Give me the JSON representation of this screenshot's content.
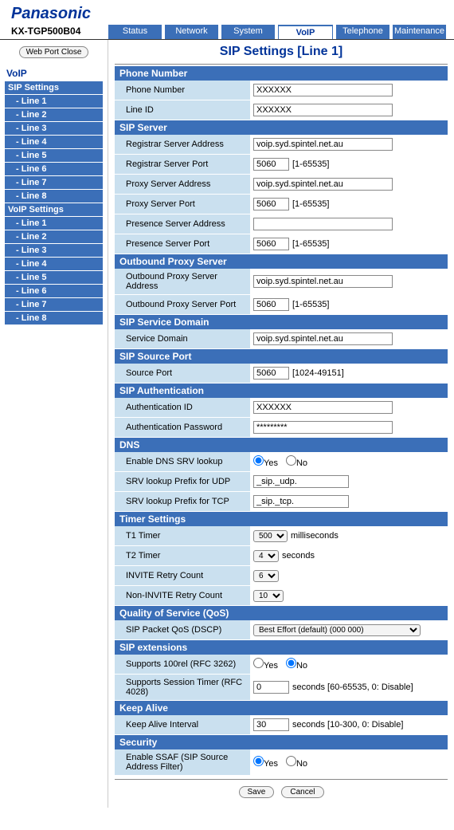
{
  "brand": "Panasonic",
  "model": "KX-TGP500B04",
  "tabs": [
    "Status",
    "Network",
    "System",
    "VoIP",
    "Telephone",
    "Maintenance"
  ],
  "active_tab": "VoIP",
  "sidebar": {
    "webport": "Web Port Close",
    "title": "VoIP",
    "groups": [
      {
        "head": "SIP Settings",
        "items": [
          "- Line 1",
          "- Line 2",
          "- Line 3",
          "- Line 4",
          "- Line 5",
          "- Line 6",
          "- Line 7",
          "- Line 8"
        ]
      },
      {
        "head": "VoIP Settings",
        "items": [
          "- Line 1",
          "- Line 2",
          "- Line 3",
          "- Line 4",
          "- Line 5",
          "- Line 6",
          "- Line 7",
          "- Line 8"
        ]
      }
    ]
  },
  "page_title": "SIP Settings [Line 1]",
  "sections": {
    "phone_number": {
      "title": "Phone Number",
      "phone_number": {
        "label": "Phone Number",
        "value": "XXXXXX"
      },
      "line_id": {
        "label": "Line ID",
        "value": "XXXXXX"
      }
    },
    "sip_server": {
      "title": "SIP Server",
      "registrar_addr": {
        "label": "Registrar Server Address",
        "value": "voip.syd.spintel.net.au"
      },
      "registrar_port": {
        "label": "Registrar Server Port",
        "value": "5060",
        "hint": "[1-65535]"
      },
      "proxy_addr": {
        "label": "Proxy Server Address",
        "value": "voip.syd.spintel.net.au"
      },
      "proxy_port": {
        "label": "Proxy Server Port",
        "value": "5060",
        "hint": "[1-65535]"
      },
      "presence_addr": {
        "label": "Presence Server Address",
        "value": ""
      },
      "presence_port": {
        "label": "Presence Server Port",
        "value": "5060",
        "hint": "[1-65535]"
      }
    },
    "outbound": {
      "title": "Outbound Proxy Server",
      "addr": {
        "label": "Outbound Proxy Server Address",
        "value": "voip.syd.spintel.net.au"
      },
      "port": {
        "label": "Outbound Proxy Server Port",
        "value": "5060",
        "hint": "[1-65535]"
      }
    },
    "svc_domain": {
      "title": "SIP Service Domain",
      "domain": {
        "label": "Service Domain",
        "value": "voip.syd.spintel.net.au"
      }
    },
    "src_port": {
      "title": "SIP Source Port",
      "port": {
        "label": "Source Port",
        "value": "5060",
        "hint": "[1024-49151]"
      }
    },
    "auth": {
      "title": "SIP Authentication",
      "id": {
        "label": "Authentication ID",
        "value": "XXXXXX"
      },
      "pwd": {
        "label": "Authentication Password",
        "value": "*********"
      }
    },
    "dns": {
      "title": "DNS",
      "enable": {
        "label": "Enable DNS SRV lookup",
        "yes": "Yes",
        "no": "No",
        "value": "yes"
      },
      "udp": {
        "label": "SRV lookup Prefix for UDP",
        "value": "_sip._udp."
      },
      "tcp": {
        "label": "SRV lookup Prefix for TCP",
        "value": "_sip._tcp."
      }
    },
    "timer": {
      "title": "Timer Settings",
      "t1": {
        "label": "T1 Timer",
        "value": "500",
        "unit": "milliseconds"
      },
      "t2": {
        "label": "T2 Timer",
        "value": "4",
        "unit": "seconds"
      },
      "invite": {
        "label": "INVITE Retry Count",
        "value": "6"
      },
      "noninvite": {
        "label": "Non-INVITE Retry Count",
        "value": "10"
      }
    },
    "qos": {
      "title": "Quality of Service (QoS)",
      "dscp": {
        "label": "SIP Packet QoS (DSCP)",
        "value": "Best Effort (default) (000 000)"
      }
    },
    "sipext": {
      "title": "SIP extensions",
      "rel100": {
        "label": "Supports 100rel (RFC 3262)",
        "yes": "Yes",
        "no": "No",
        "value": "no"
      },
      "stimer": {
        "label": "Supports Session Timer (RFC 4028)",
        "value": "0",
        "hint": "seconds [60-65535, 0: Disable]"
      }
    },
    "keepalive": {
      "title": "Keep Alive",
      "interval": {
        "label": "Keep Alive Interval",
        "value": "30",
        "hint": "seconds [10-300, 0: Disable]"
      }
    },
    "security": {
      "title": "Security",
      "ssaf": {
        "label": "Enable SSAF (SIP Source Address Filter)",
        "yes": "Yes",
        "no": "No",
        "value": "yes"
      }
    }
  },
  "buttons": {
    "save": "Save",
    "cancel": "Cancel"
  }
}
